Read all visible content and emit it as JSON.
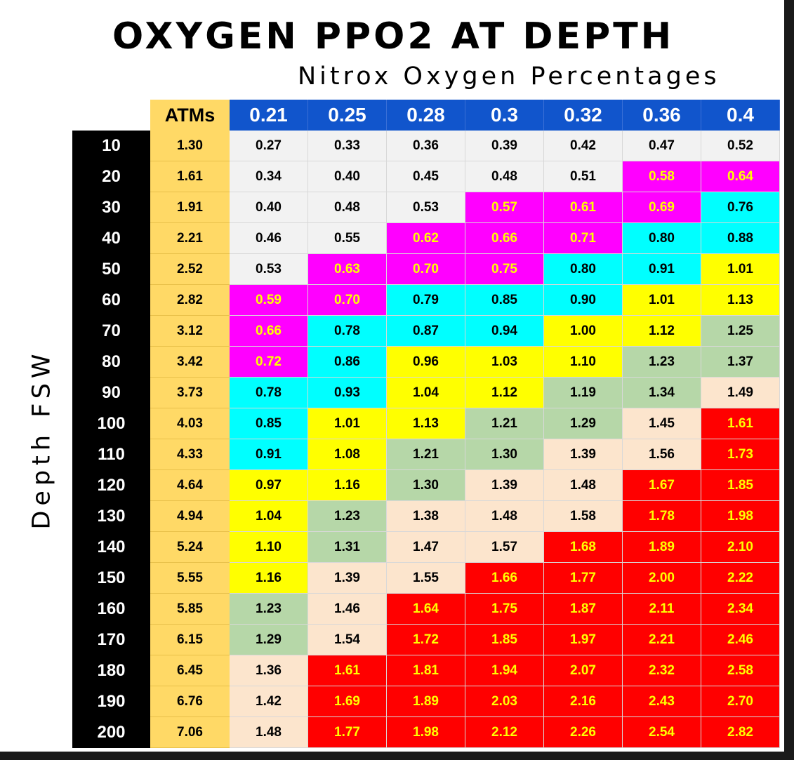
{
  "title": "OXYGEN PPO2 AT DEPTH",
  "subtitle": "Nitrox Oxygen Percentages",
  "ylabel": "Depth FSW",
  "colors": {
    "white": "#f2f2f2",
    "magenta": "#ff00ff",
    "cyan": "#00ffff",
    "yellow": "#ffff00",
    "green": "#b6d7a8",
    "peach": "#fce5cd",
    "red": "#ff0000",
    "header_blue": "#1155cc",
    "atm_gold": "#ffd966",
    "depth_black": "#000000"
  },
  "chart_data": {
    "type": "table",
    "title": "OXYGEN PPO2 AT DEPTH",
    "column_group_label": "Nitrox Oxygen Percentages",
    "row_label": "Depth FSW",
    "atm_header": "ATMs",
    "columns": [
      "0.21",
      "0.25",
      "0.28",
      "0.3",
      "0.32",
      "0.36",
      "0.4"
    ],
    "rows": [
      {
        "depth": "10",
        "atm": "1.30",
        "values": [
          "0.27",
          "0.33",
          "0.36",
          "0.39",
          "0.42",
          "0.47",
          "0.52"
        ],
        "colors": [
          "white",
          "white",
          "white",
          "white",
          "white",
          "white",
          "white"
        ]
      },
      {
        "depth": "20",
        "atm": "1.61",
        "values": [
          "0.34",
          "0.40",
          "0.45",
          "0.48",
          "0.51",
          "0.58",
          "0.64"
        ],
        "colors": [
          "white",
          "white",
          "white",
          "white",
          "white",
          "magenta",
          "magenta"
        ]
      },
      {
        "depth": "30",
        "atm": "1.91",
        "values": [
          "0.40",
          "0.48",
          "0.53",
          "0.57",
          "0.61",
          "0.69",
          "0.76"
        ],
        "colors": [
          "white",
          "white",
          "white",
          "magenta",
          "magenta",
          "magenta",
          "cyan"
        ]
      },
      {
        "depth": "40",
        "atm": "2.21",
        "values": [
          "0.46",
          "0.55",
          "0.62",
          "0.66",
          "0.71",
          "0.80",
          "0.88"
        ],
        "colors": [
          "white",
          "white",
          "magenta",
          "magenta",
          "magenta",
          "cyan",
          "cyan"
        ]
      },
      {
        "depth": "50",
        "atm": "2.52",
        "values": [
          "0.53",
          "0.63",
          "0.70",
          "0.75",
          "0.80",
          "0.91",
          "1.01"
        ],
        "colors": [
          "white",
          "magenta",
          "magenta",
          "magenta",
          "cyan",
          "cyan",
          "yellow"
        ]
      },
      {
        "depth": "60",
        "atm": "2.82",
        "values": [
          "0.59",
          "0.70",
          "0.79",
          "0.85",
          "0.90",
          "1.01",
          "1.13"
        ],
        "colors": [
          "magenta",
          "magenta",
          "cyan",
          "cyan",
          "cyan",
          "yellow",
          "yellow"
        ]
      },
      {
        "depth": "70",
        "atm": "3.12",
        "values": [
          "0.66",
          "0.78",
          "0.87",
          "0.94",
          "1.00",
          "1.12",
          "1.25"
        ],
        "colors": [
          "magenta",
          "cyan",
          "cyan",
          "cyan",
          "yellow",
          "yellow",
          "green"
        ]
      },
      {
        "depth": "80",
        "atm": "3.42",
        "values": [
          "0.72",
          "0.86",
          "0.96",
          "1.03",
          "1.10",
          "1.23",
          "1.37"
        ],
        "colors": [
          "magenta",
          "cyan",
          "yellow",
          "yellow",
          "yellow",
          "green",
          "green"
        ]
      },
      {
        "depth": "90",
        "atm": "3.73",
        "values": [
          "0.78",
          "0.93",
          "1.04",
          "1.12",
          "1.19",
          "1.34",
          "1.49"
        ],
        "colors": [
          "cyan",
          "cyan",
          "yellow",
          "yellow",
          "green",
          "green",
          "peach"
        ]
      },
      {
        "depth": "100",
        "atm": "4.03",
        "values": [
          "0.85",
          "1.01",
          "1.13",
          "1.21",
          "1.29",
          "1.45",
          "1.61"
        ],
        "colors": [
          "cyan",
          "yellow",
          "yellow",
          "green",
          "green",
          "peach",
          "red"
        ]
      },
      {
        "depth": "110",
        "atm": "4.33",
        "values": [
          "0.91",
          "1.08",
          "1.21",
          "1.30",
          "1.39",
          "1.56",
          "1.73"
        ],
        "colors": [
          "cyan",
          "yellow",
          "green",
          "green",
          "peach",
          "peach",
          "red"
        ]
      },
      {
        "depth": "120",
        "atm": "4.64",
        "values": [
          "0.97",
          "1.16",
          "1.30",
          "1.39",
          "1.48",
          "1.67",
          "1.85"
        ],
        "colors": [
          "yellow",
          "yellow",
          "green",
          "peach",
          "peach",
          "red",
          "red"
        ]
      },
      {
        "depth": "130",
        "atm": "4.94",
        "values": [
          "1.04",
          "1.23",
          "1.38",
          "1.48",
          "1.58",
          "1.78",
          "1.98"
        ],
        "colors": [
          "yellow",
          "green",
          "peach",
          "peach",
          "peach",
          "red",
          "red"
        ]
      },
      {
        "depth": "140",
        "atm": "5.24",
        "values": [
          "1.10",
          "1.31",
          "1.47",
          "1.57",
          "1.68",
          "1.89",
          "2.10"
        ],
        "colors": [
          "yellow",
          "green",
          "peach",
          "peach",
          "red",
          "red",
          "red"
        ]
      },
      {
        "depth": "150",
        "atm": "5.55",
        "values": [
          "1.16",
          "1.39",
          "1.55",
          "1.66",
          "1.77",
          "2.00",
          "2.22"
        ],
        "colors": [
          "yellow",
          "peach",
          "peach",
          "red",
          "red",
          "red",
          "red"
        ]
      },
      {
        "depth": "160",
        "atm": "5.85",
        "values": [
          "1.23",
          "1.46",
          "1.64",
          "1.75",
          "1.87",
          "2.11",
          "2.34"
        ],
        "colors": [
          "green",
          "peach",
          "red",
          "red",
          "red",
          "red",
          "red"
        ]
      },
      {
        "depth": "170",
        "atm": "6.15",
        "values": [
          "1.29",
          "1.54",
          "1.72",
          "1.85",
          "1.97",
          "2.21",
          "2.46"
        ],
        "colors": [
          "green",
          "peach",
          "red",
          "red",
          "red",
          "red",
          "red"
        ]
      },
      {
        "depth": "180",
        "atm": "6.45",
        "values": [
          "1.36",
          "1.61",
          "1.81",
          "1.94",
          "2.07",
          "2.32",
          "2.58"
        ],
        "colors": [
          "peach",
          "red",
          "red",
          "red",
          "red",
          "red",
          "red"
        ]
      },
      {
        "depth": "190",
        "atm": "6.76",
        "values": [
          "1.42",
          "1.69",
          "1.89",
          "2.03",
          "2.16",
          "2.43",
          "2.70"
        ],
        "colors": [
          "peach",
          "red",
          "red",
          "red",
          "red",
          "red",
          "red"
        ]
      },
      {
        "depth": "200",
        "atm": "7.06",
        "values": [
          "1.48",
          "1.77",
          "1.98",
          "2.12",
          "2.26",
          "2.54",
          "2.82"
        ],
        "colors": [
          "peach",
          "red",
          "red",
          "red",
          "red",
          "red",
          "red"
        ]
      }
    ]
  }
}
